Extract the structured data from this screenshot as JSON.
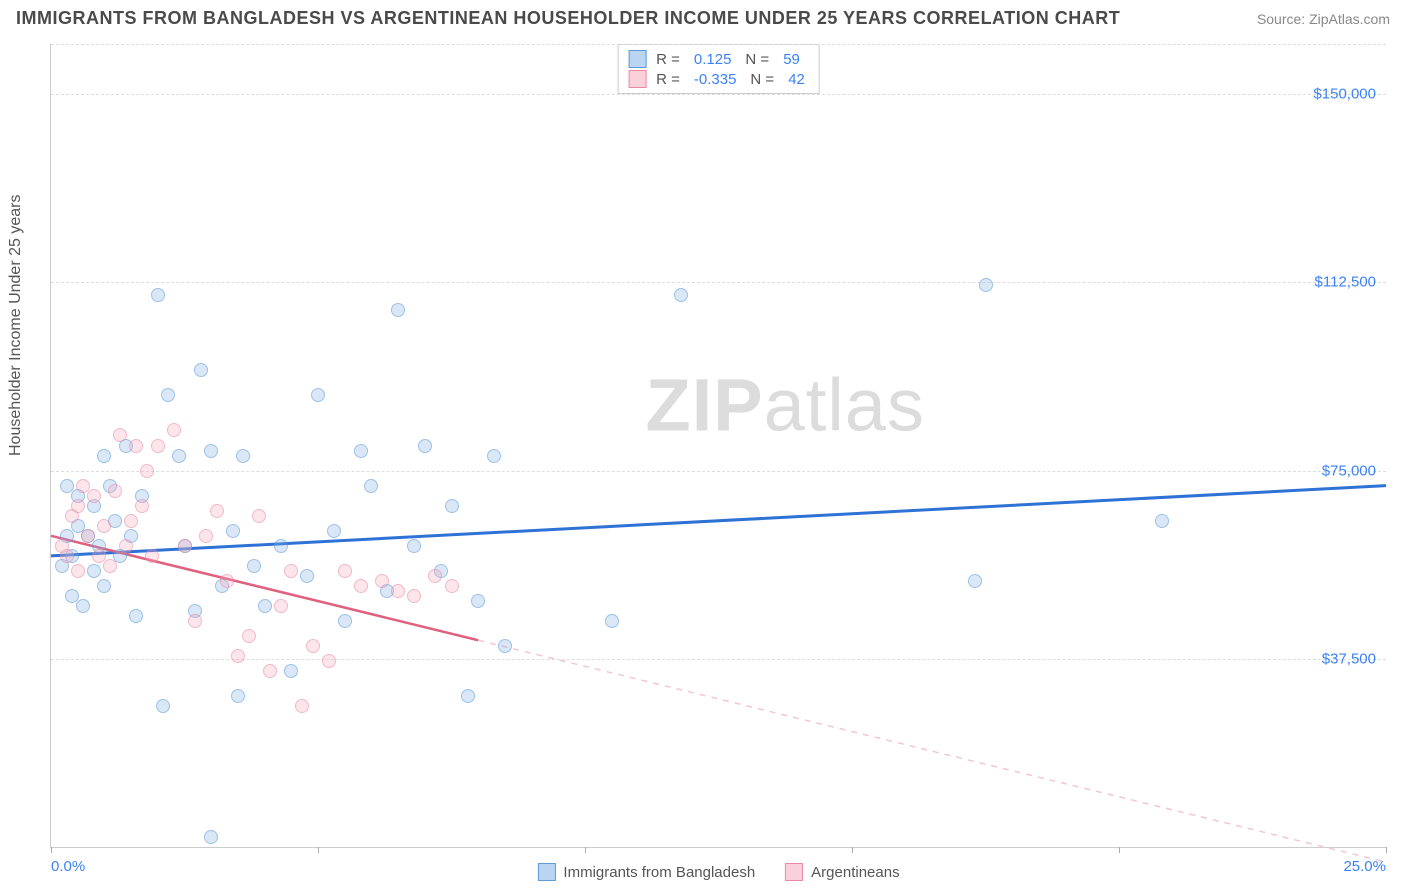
{
  "header": {
    "title": "IMMIGRANTS FROM BANGLADESH VS ARGENTINEAN HOUSEHOLDER INCOME UNDER 25 YEARS CORRELATION CHART",
    "source_prefix": "Source: ",
    "source_name": "ZipAtlas.com"
  },
  "watermark": {
    "bold": "ZIP",
    "rest": "atlas"
  },
  "chart": {
    "type": "scatter-with-regression",
    "ylabel": "Householder Income Under 25 years",
    "xlim": [
      0,
      25
    ],
    "ylim": [
      0,
      160000
    ],
    "xtick_positions": [
      0,
      5,
      10,
      15,
      20,
      25
    ],
    "xtick_labels": {
      "first": "0.0%",
      "last": "25.0%"
    },
    "ytick_positions": [
      37500,
      75000,
      112500,
      150000
    ],
    "ytick_labels": [
      "$37,500",
      "$75,000",
      "$112,500",
      "$150,000"
    ],
    "grid_color": "#dddddd",
    "axis_color": "#cccccc",
    "background_color": "#ffffff",
    "point_radius": 7,
    "point_opacity": 0.6,
    "series": [
      {
        "key": "bangladesh",
        "label": "Immigrants from Bangladesh",
        "color_fill": "rgba(130,177,230,0.5)",
        "color_stroke": "#5a9bd8",
        "line_color": "#2f72d6",
        "line_width": 3,
        "r": "0.125",
        "n": "59",
        "regression": {
          "x1": 0,
          "y1": 58000,
          "x2": 25,
          "y2": 72000,
          "solid_to_x": 25,
          "dashed_color": "#a9c8ec"
        },
        "points": [
          [
            0.2,
            56000
          ],
          [
            0.3,
            62000
          ],
          [
            0.4,
            50000
          ],
          [
            0.4,
            58000
          ],
          [
            0.5,
            64000
          ],
          [
            0.5,
            70000
          ],
          [
            0.6,
            48000
          ],
          [
            0.7,
            62000
          ],
          [
            0.8,
            55000
          ],
          [
            0.8,
            68000
          ],
          [
            0.9,
            60000
          ],
          [
            1.0,
            78000
          ],
          [
            1.0,
            52000
          ],
          [
            1.1,
            72000
          ],
          [
            1.2,
            65000
          ],
          [
            1.3,
            58000
          ],
          [
            1.4,
            80000
          ],
          [
            1.5,
            62000
          ],
          [
            1.6,
            46000
          ],
          [
            1.7,
            70000
          ],
          [
            2.0,
            110000
          ],
          [
            2.2,
            90000
          ],
          [
            2.4,
            78000
          ],
          [
            2.5,
            60000
          ],
          [
            2.7,
            47000
          ],
          [
            2.8,
            95000
          ],
          [
            3.0,
            79000
          ],
          [
            3.2,
            52000
          ],
          [
            3.4,
            63000
          ],
          [
            3.5,
            30000
          ],
          [
            3.6,
            78000
          ],
          [
            3.8,
            56000
          ],
          [
            4.0,
            48000
          ],
          [
            4.3,
            60000
          ],
          [
            4.5,
            35000
          ],
          [
            4.8,
            54000
          ],
          [
            5.0,
            90000
          ],
          [
            5.3,
            63000
          ],
          [
            5.5,
            45000
          ],
          [
            5.8,
            79000
          ],
          [
            6.0,
            72000
          ],
          [
            6.3,
            51000
          ],
          [
            6.5,
            107000
          ],
          [
            6.8,
            60000
          ],
          [
            7.0,
            80000
          ],
          [
            7.3,
            55000
          ],
          [
            7.5,
            68000
          ],
          [
            7.8,
            30000
          ],
          [
            8.0,
            49000
          ],
          [
            8.3,
            78000
          ],
          [
            8.5,
            40000
          ],
          [
            10.5,
            45000
          ],
          [
            11.8,
            110000
          ],
          [
            17.3,
            53000
          ],
          [
            17.5,
            112000
          ],
          [
            20.8,
            65000
          ],
          [
            3.0,
            2000
          ],
          [
            2.1,
            28000
          ],
          [
            0.3,
            72000
          ]
        ]
      },
      {
        "key": "argentinean",
        "label": "Argentineans",
        "color_fill": "rgba(245,170,190,0.5)",
        "color_stroke": "#e88aa5",
        "line_color": "#e0607f",
        "line_width": 2.5,
        "r": "-0.335",
        "n": "42",
        "regression": {
          "x1": 0,
          "y1": 62000,
          "x2": 25,
          "y2": -3000,
          "solid_to_x": 8,
          "dashed_color": "#f3c6d2"
        },
        "points": [
          [
            0.2,
            60000
          ],
          [
            0.3,
            58000
          ],
          [
            0.4,
            66000
          ],
          [
            0.5,
            68000
          ],
          [
            0.5,
            55000
          ],
          [
            0.6,
            72000
          ],
          [
            0.7,
            62000
          ],
          [
            0.8,
            70000
          ],
          [
            0.9,
            58000
          ],
          [
            1.0,
            64000
          ],
          [
            1.1,
            56000
          ],
          [
            1.2,
            71000
          ],
          [
            1.3,
            82000
          ],
          [
            1.4,
            60000
          ],
          [
            1.5,
            65000
          ],
          [
            1.6,
            80000
          ],
          [
            1.7,
            68000
          ],
          [
            1.8,
            75000
          ],
          [
            1.9,
            58000
          ],
          [
            2.0,
            80000
          ],
          [
            2.3,
            83000
          ],
          [
            2.5,
            60000
          ],
          [
            2.7,
            45000
          ],
          [
            2.9,
            62000
          ],
          [
            3.1,
            67000
          ],
          [
            3.3,
            53000
          ],
          [
            3.5,
            38000
          ],
          [
            3.7,
            42000
          ],
          [
            3.9,
            66000
          ],
          [
            4.1,
            35000
          ],
          [
            4.3,
            48000
          ],
          [
            4.5,
            55000
          ],
          [
            4.7,
            28000
          ],
          [
            4.9,
            40000
          ],
          [
            5.2,
            37000
          ],
          [
            5.5,
            55000
          ],
          [
            5.8,
            52000
          ],
          [
            6.2,
            53000
          ],
          [
            6.5,
            51000
          ],
          [
            6.8,
            50000
          ],
          [
            7.2,
            54000
          ],
          [
            7.5,
            52000
          ]
        ]
      }
    ]
  },
  "legend_top": {
    "r_label": "R =",
    "n_label": "N ="
  }
}
